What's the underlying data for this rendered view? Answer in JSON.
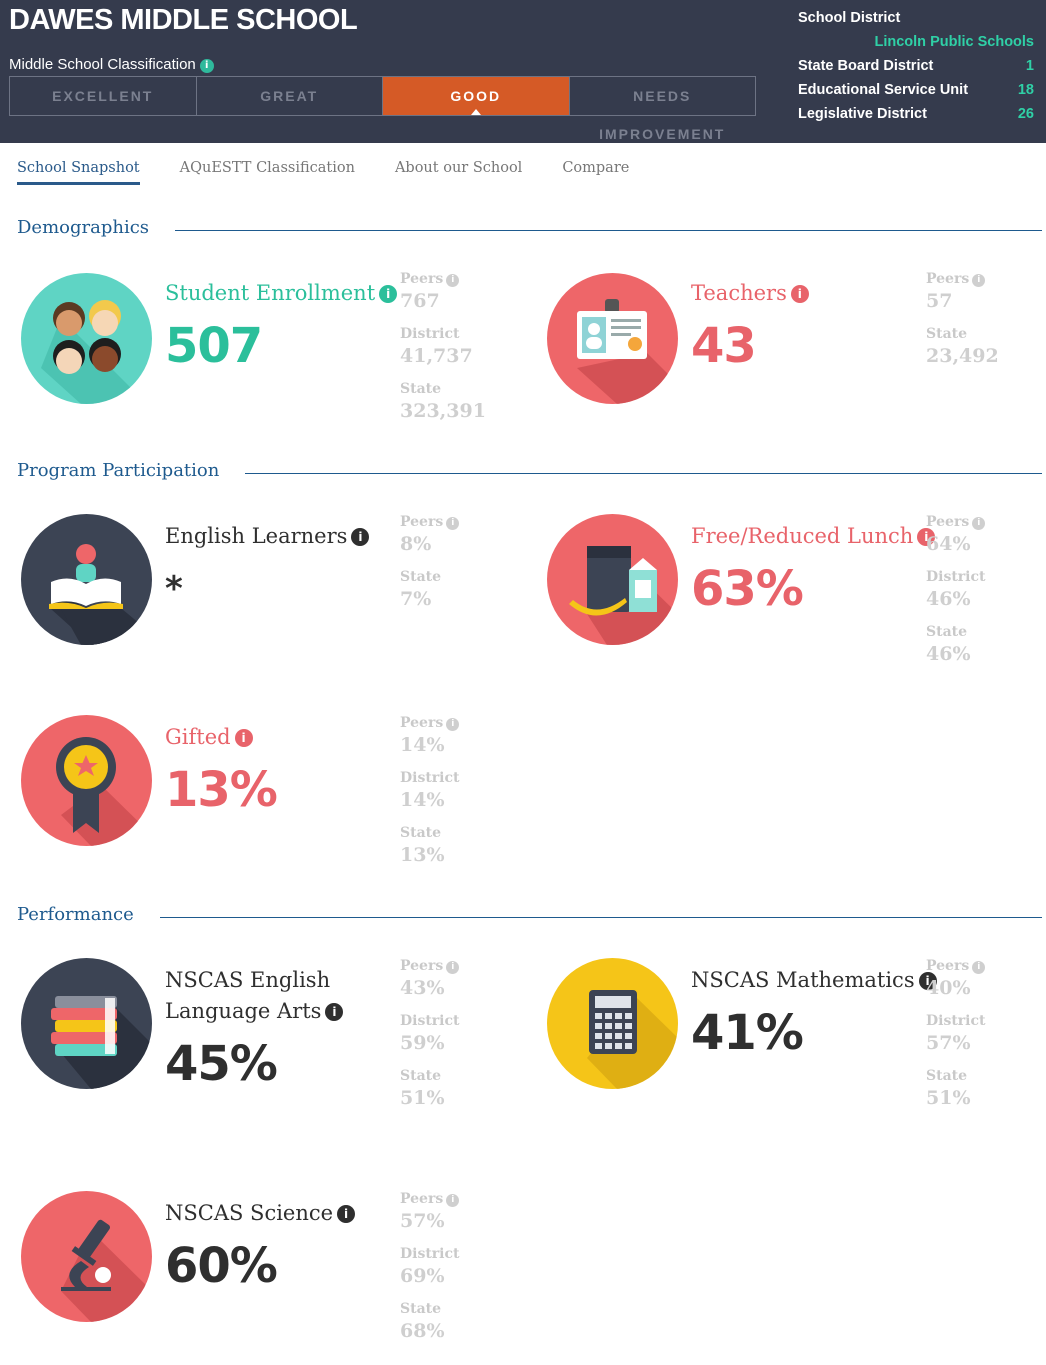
{
  "header": {
    "school_name": "DAWES MIDDLE SCHOOL",
    "classification_label": "Middle School Classification",
    "ratings": [
      "EXCELLENT",
      "GREAT",
      "GOOD",
      "NEEDS IMPROVEMENT"
    ],
    "active_rating": "GOOD",
    "school_district_label": "School District",
    "school_district_value": "Lincoln Public Schools",
    "state_board_label": "State Board District",
    "state_board_value": "1",
    "esu_label": "Educational Service Unit",
    "esu_value": "18",
    "legislative_label": "Legislative District",
    "legislative_value": "26"
  },
  "tabs": [
    "School Snapshot",
    "AQuESTT Classification",
    "About our School",
    "Compare"
  ],
  "sections": {
    "demographics": "Demographics",
    "program": "Program Participation",
    "performance": "Performance"
  },
  "metrics": {
    "enrollment": {
      "title": "Student Enrollment",
      "value": "507",
      "cmp": [
        {
          "label": "Peers",
          "value": "767"
        },
        {
          "label": "District",
          "value": "41,737"
        },
        {
          "label": "State",
          "value": "323,391"
        }
      ]
    },
    "teachers": {
      "title": "Teachers",
      "value": "43",
      "cmp": [
        {
          "label": "Peers",
          "value": "57"
        },
        {
          "label": "State",
          "value": "23,492"
        }
      ]
    },
    "english": {
      "title": "English Learners",
      "value": "*",
      "cmp": [
        {
          "label": "Peers",
          "value": "8%"
        },
        {
          "label": "State",
          "value": "7%"
        }
      ]
    },
    "lunch": {
      "title": "Free/Reduced Lunch",
      "value": "63%",
      "cmp": [
        {
          "label": "Peers",
          "value": "64%"
        },
        {
          "label": "District",
          "value": "46%"
        },
        {
          "label": "State",
          "value": "46%"
        }
      ]
    },
    "gifted": {
      "title": "Gifted",
      "value": "13%",
      "cmp": [
        {
          "label": "Peers",
          "value": "14%"
        },
        {
          "label": "District",
          "value": "14%"
        },
        {
          "label": "State",
          "value": "13%"
        }
      ]
    },
    "ela": {
      "title_line1": "NSCAS English",
      "title_line2": "Language Arts",
      "value": "45%",
      "cmp": [
        {
          "label": "Peers",
          "value": "43%"
        },
        {
          "label": "District",
          "value": "59%"
        },
        {
          "label": "State",
          "value": "51%"
        }
      ]
    },
    "math": {
      "title": "NSCAS Mathematics",
      "value": "41%",
      "cmp": [
        {
          "label": "Peers",
          "value": "40%"
        },
        {
          "label": "District",
          "value": "57%"
        },
        {
          "label": "State",
          "value": "51%"
        }
      ]
    },
    "science": {
      "title": "NSCAS Science",
      "value": "60%",
      "cmp": [
        {
          "label": "Peers",
          "value": "57%"
        },
        {
          "label": "District",
          "value": "69%"
        },
        {
          "label": "State",
          "value": "68%"
        }
      ]
    }
  },
  "icons": {
    "info": "info-icon",
    "enrollment": "students-icon",
    "teachers": "id-badge-icon",
    "english": "reader-book-icon",
    "lunch": "lunch-bag-icon",
    "gifted": "award-ribbon-icon",
    "ela": "books-stack-icon",
    "math": "calculator-icon",
    "science": "microscope-icon"
  },
  "colors": {
    "header_bg": "#353b4d",
    "accent_orange": "#d55a26",
    "teal": "#2bbf9b",
    "coral": "#e8636a",
    "navy": "#1e5a8e",
    "yellow": "#f5c518"
  }
}
